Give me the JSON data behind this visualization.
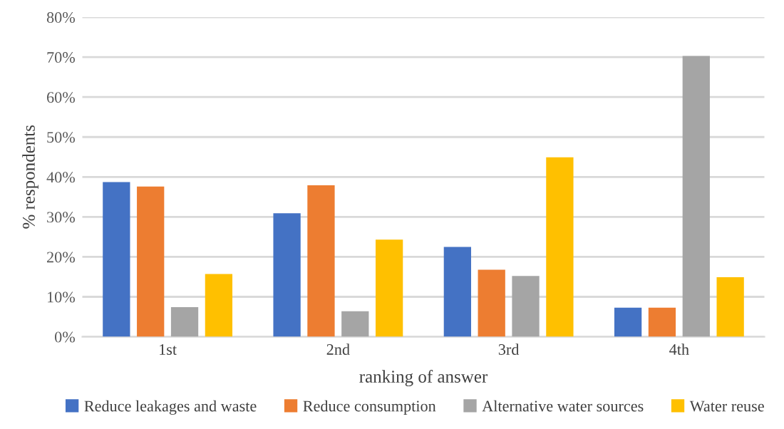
{
  "chart_data": {
    "type": "bar",
    "xlabel": "ranking of answer",
    "ylabel": "% respondents",
    "categories": [
      "1st",
      "2nd",
      "3rd",
      "4th"
    ],
    "series": [
      {
        "name": "Reduce leakages and waste",
        "color": "#4472c4",
        "values": [
          38.7,
          30.9,
          22.5,
          7.3
        ]
      },
      {
        "name": "Reduce consumption",
        "color": "#ed7d31",
        "values": [
          37.6,
          37.9,
          16.8,
          7.3
        ]
      },
      {
        "name": "Alternative water sources",
        "color": "#a5a5a5",
        "values": [
          7.4,
          6.4,
          15.2,
          70.3
        ]
      },
      {
        "name": "Water reuse",
        "color": "#ffc000",
        "values": [
          15.7,
          24.3,
          44.9,
          14.9
        ]
      }
    ],
    "ylim": [
      0,
      80
    ],
    "yticks": [
      {
        "value": 0,
        "label": "0%"
      },
      {
        "value": 10,
        "label": "10%"
      },
      {
        "value": 20,
        "label": "20%"
      },
      {
        "value": 30,
        "label": "30%"
      },
      {
        "value": 40,
        "label": "40%"
      },
      {
        "value": 50,
        "label": "50%"
      },
      {
        "value": 60,
        "label": "60%"
      },
      {
        "value": 70,
        "label": "70%"
      },
      {
        "value": 80,
        "label": "80%"
      }
    ],
    "grid": "y",
    "legend": "bottom"
  }
}
